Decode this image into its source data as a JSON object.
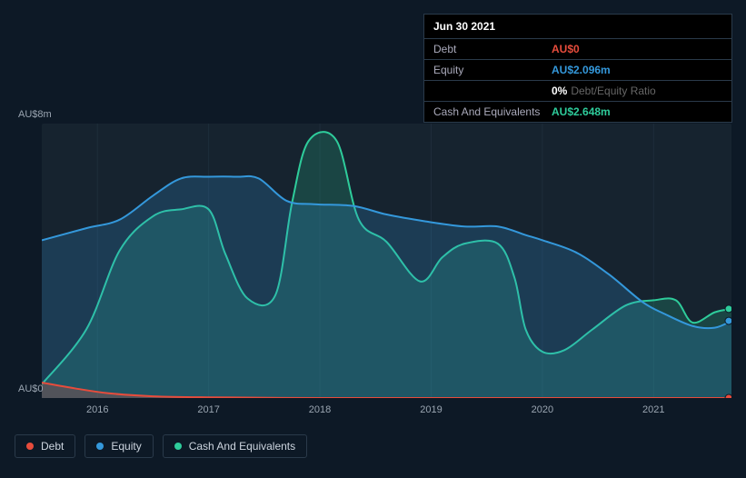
{
  "tooltip": {
    "date": "Jun 30 2021",
    "rows": [
      {
        "label": "Debt",
        "value": "AU$0",
        "color": "#e74c3c"
      },
      {
        "label": "Equity",
        "value": "AU$2.096m",
        "color": "#3498db"
      },
      {
        "label": "",
        "value": "0%",
        "suffix": "Debt/Equity Ratio",
        "color": "#ffffff"
      },
      {
        "label": "Cash And Equivalents",
        "value": "AU$2.648m",
        "color": "#2ecc9b"
      }
    ]
  },
  "chart": {
    "type": "area",
    "background_color": "#16232f",
    "page_background": "#0d1926",
    "y_label_top": "AU$8m",
    "y_label_bottom": "AU$0",
    "y_label_color": "#9aa5b1",
    "ylim": [
      0,
      8
    ],
    "xlim": [
      2015.5,
      2021.7
    ],
    "xticks": [
      2016,
      2017,
      2018,
      2019,
      2020,
      2021
    ],
    "grid_color": "#1e2d3b",
    "axis_font_size": 11,
    "series": [
      {
        "name": "Cash And Equivalents",
        "color": "#2ecc9b",
        "fill_opacity": 0.2,
        "line_width": 2,
        "points": [
          [
            2015.5,
            0.4
          ],
          [
            2015.9,
            2.0
          ],
          [
            2016.2,
            4.3
          ],
          [
            2016.5,
            5.3
          ],
          [
            2016.75,
            5.5
          ],
          [
            2017.0,
            5.5
          ],
          [
            2017.15,
            4.2
          ],
          [
            2017.35,
            2.9
          ],
          [
            2017.6,
            3.0
          ],
          [
            2017.75,
            5.7
          ],
          [
            2017.9,
            7.5
          ],
          [
            2018.15,
            7.5
          ],
          [
            2018.35,
            5.2
          ],
          [
            2018.6,
            4.55
          ],
          [
            2018.9,
            3.4
          ],
          [
            2019.1,
            4.1
          ],
          [
            2019.3,
            4.5
          ],
          [
            2019.6,
            4.5
          ],
          [
            2019.75,
            3.5
          ],
          [
            2019.85,
            2.0
          ],
          [
            2020.0,
            1.35
          ],
          [
            2020.2,
            1.4
          ],
          [
            2020.45,
            2.0
          ],
          [
            2020.75,
            2.7
          ],
          [
            2021.0,
            2.85
          ],
          [
            2021.2,
            2.85
          ],
          [
            2021.35,
            2.2
          ],
          [
            2021.55,
            2.5
          ],
          [
            2021.7,
            2.6
          ]
        ]
      },
      {
        "name": "Equity",
        "color": "#3498db",
        "fill_opacity": 0.22,
        "line_width": 2,
        "points": [
          [
            2015.5,
            4.6
          ],
          [
            2015.9,
            4.95
          ],
          [
            2016.2,
            5.2
          ],
          [
            2016.5,
            5.9
          ],
          [
            2016.75,
            6.4
          ],
          [
            2017.0,
            6.45
          ],
          [
            2017.25,
            6.45
          ],
          [
            2017.45,
            6.4
          ],
          [
            2017.7,
            5.75
          ],
          [
            2017.95,
            5.65
          ],
          [
            2018.3,
            5.6
          ],
          [
            2018.6,
            5.35
          ],
          [
            2018.95,
            5.15
          ],
          [
            2019.3,
            5.0
          ],
          [
            2019.6,
            5.0
          ],
          [
            2019.85,
            4.75
          ],
          [
            2020.0,
            4.6
          ],
          [
            2020.3,
            4.25
          ],
          [
            2020.6,
            3.6
          ],
          [
            2020.9,
            2.8
          ],
          [
            2021.1,
            2.45
          ],
          [
            2021.35,
            2.1
          ],
          [
            2021.55,
            2.05
          ],
          [
            2021.7,
            2.25
          ]
        ]
      },
      {
        "name": "Debt",
        "color": "#e74c3c",
        "fill_opacity": 0.25,
        "line_width": 2,
        "points": [
          [
            2015.5,
            0.45
          ],
          [
            2015.8,
            0.28
          ],
          [
            2016.1,
            0.14
          ],
          [
            2016.5,
            0.05
          ],
          [
            2017.0,
            0.02
          ],
          [
            2018.0,
            0.0
          ],
          [
            2019.0,
            0.0
          ],
          [
            2020.0,
            0.0
          ],
          [
            2021.0,
            0.0
          ],
          [
            2021.7,
            0.0
          ]
        ]
      }
    ],
    "end_markers": [
      {
        "color": "#e74c3c",
        "y": 0.0
      },
      {
        "color": "#3498db",
        "y": 2.25
      },
      {
        "color": "#2ecc9b",
        "y": 2.6
      }
    ]
  },
  "legend": {
    "items": [
      {
        "label": "Debt",
        "color": "#e74c3c"
      },
      {
        "label": "Equity",
        "color": "#3498db"
      },
      {
        "label": "Cash And Equivalents",
        "color": "#2ecc9b"
      }
    ],
    "border_color": "#2a3a4a",
    "text_color": "#cdd5df"
  }
}
